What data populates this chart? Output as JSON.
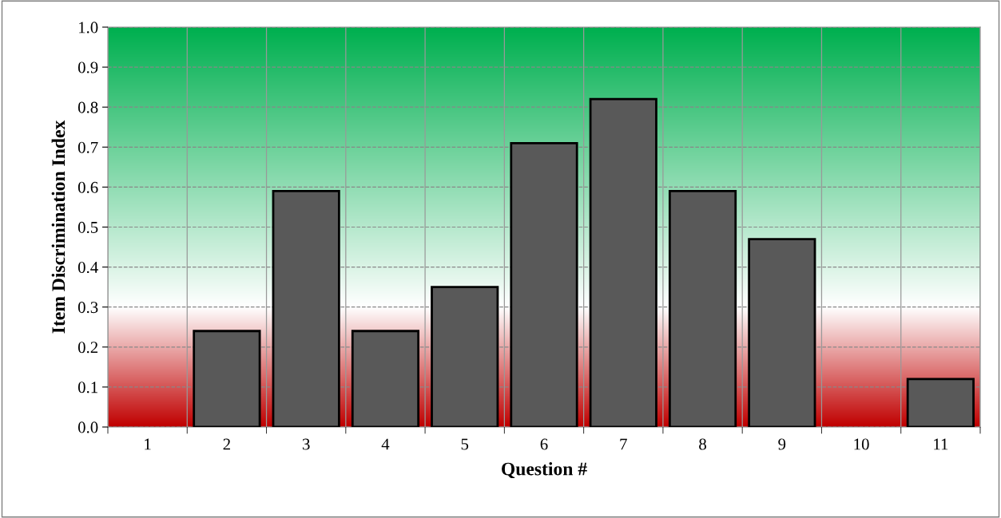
{
  "chart_data": {
    "type": "bar",
    "xlabel": "Question #",
    "ylabel": "Item Discrimination Index",
    "categories": [
      "1",
      "2",
      "3",
      "4",
      "5",
      "6",
      "7",
      "8",
      "9",
      "10",
      "11"
    ],
    "values": [
      0,
      0.24,
      0.59,
      0.24,
      0.35,
      0.71,
      0.82,
      0.59,
      0.47,
      0,
      0.12
    ],
    "color": "#595959",
    "ylim": [
      0,
      1.0
    ],
    "yticks": [
      {
        "value": 0,
        "label": "0.0"
      },
      {
        "value": 0.1,
        "label": "0.1"
      },
      {
        "value": 0.2,
        "label": "0.2"
      },
      {
        "value": 0.3,
        "label": "0.3"
      },
      {
        "value": 0.4,
        "label": "0.4"
      },
      {
        "value": 0.5,
        "label": "0.5"
      },
      {
        "value": 0.6,
        "label": "0.6"
      },
      {
        "value": 0.7,
        "label": "0.7"
      },
      {
        "value": 0.8,
        "label": "0.8"
      },
      {
        "value": 0.9,
        "label": "0.9"
      },
      {
        "value": 1.0,
        "label": "1.0"
      }
    ],
    "grid": true,
    "bands": [
      {
        "axis": "y",
        "from": 0.3,
        "to": 1.0,
        "color": "#00b050"
      },
      {
        "axis": "y",
        "from": 0,
        "to": 0.3,
        "color": "#c00000"
      }
    ]
  }
}
